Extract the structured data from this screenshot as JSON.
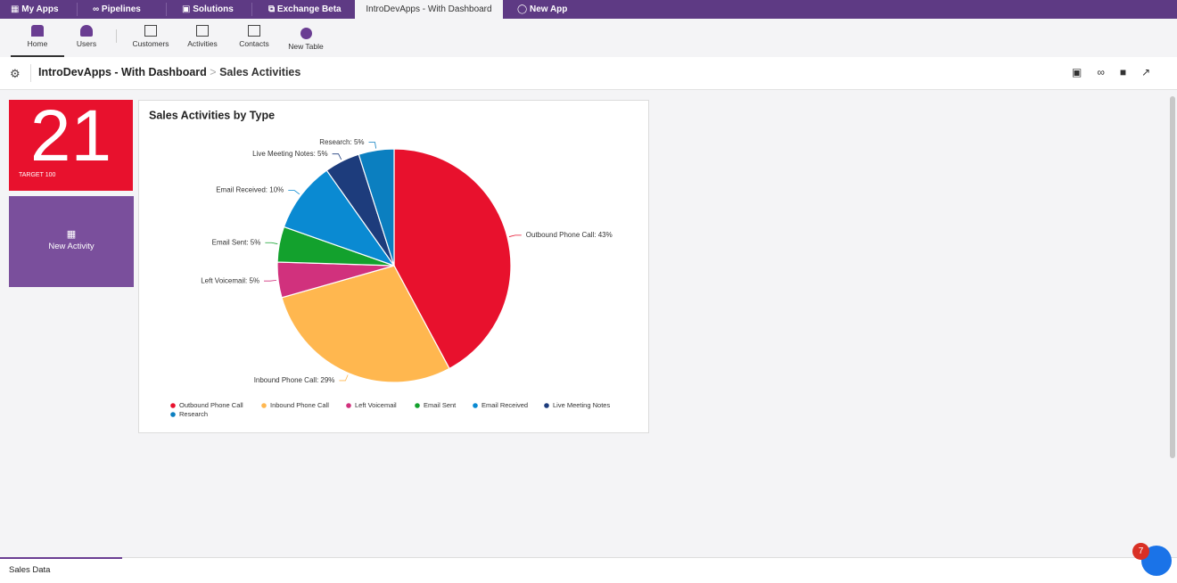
{
  "top_nav": {
    "tabs": [
      "My Apps",
      "Pipelines",
      "Solutions",
      "Exchange Beta",
      "IntroDevApps - With Dashboard",
      "New App"
    ]
  },
  "toolbar": {
    "items": [
      "Home",
      "Users",
      "Customers",
      "Activities",
      "Contacts",
      "New Table"
    ]
  },
  "breadcrumb": {
    "app": "IntroDevApps - With Dashboard",
    "page": "Sales Activities"
  },
  "kpi": {
    "value": 21,
    "target_label": "TARGET 100"
  },
  "action_tile": {
    "label": "New Activity"
  },
  "chart_data": {
    "type": "pie",
    "title": "Sales Activities by Type",
    "categories": [
      "Outbound Phone Call",
      "Inbound Phone Call",
      "Left Voicemail",
      "Email Sent",
      "Email Received",
      "Live Meeting Notes",
      "Research"
    ],
    "values": [
      43,
      29,
      5,
      5,
      10,
      5,
      5
    ],
    "value_labels": [
      "Outbound Phone Call: 43%",
      "Inbound Phone Call: 29%",
      "Left Voicemail: 5%",
      "Email Sent: 5%",
      "Email Received: 10%",
      "Live Meeting Notes: 5%",
      "Research: 5%"
    ],
    "colors": [
      "#e8112d",
      "#ffb74f",
      "#d1317d",
      "#13a12d",
      "#0a8ad2",
      "#1d3c7c",
      "#0b7fc0"
    ],
    "legend": "bottom"
  },
  "footer": {
    "tab": "Sales Data"
  },
  "notification": {
    "count": 7
  }
}
